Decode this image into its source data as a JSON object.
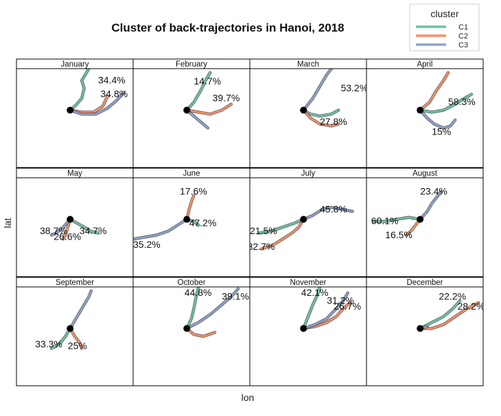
{
  "title": "Cluster of back-trajectories in Hanoi, 2018",
  "xlabel": "lon",
  "ylabel": "lat",
  "legend": {
    "title": "cluster",
    "items": [
      {
        "label": "C1",
        "color": "#66c2a5"
      },
      {
        "label": "C2",
        "color": "#fc8d62"
      },
      {
        "label": "C3",
        "color": "#8da0cb"
      }
    ]
  },
  "chart_data": {
    "type": "map-trajectory-facets",
    "panels": [
      {
        "month": "January",
        "clusters": [
          {
            "name": "C2",
            "pct_label": "34.8%"
          },
          {
            "name": "C3",
            "pct_label": "34.4%"
          },
          {
            "name": "C1",
            "pct_label": ""
          }
        ]
      },
      {
        "month": "February",
        "clusters": [
          {
            "name": "C1",
            "pct_label": "14.7%"
          },
          {
            "name": "C2",
            "pct_label": "39.7%"
          },
          {
            "name": "C3",
            "pct_label": ""
          }
        ]
      },
      {
        "month": "March",
        "clusters": [
          {
            "name": "C1",
            "pct_label": "27.8%"
          },
          {
            "name": "C3",
            "pct_label": "53.2%"
          },
          {
            "name": "C2",
            "pct_label": ""
          }
        ]
      },
      {
        "month": "April",
        "clusters": [
          {
            "name": "C1",
            "pct_label": "58.3%"
          },
          {
            "name": "C2",
            "pct_label": ""
          },
          {
            "name": "C3",
            "pct_label": "15%"
          }
        ]
      },
      {
        "month": "May",
        "clusters": [
          {
            "name": "C1",
            "pct_label": "34.7%"
          },
          {
            "name": "C2",
            "pct_label": "26.6%"
          },
          {
            "name": "C3",
            "pct_label": "38.7%"
          }
        ]
      },
      {
        "month": "June",
        "clusters": [
          {
            "name": "C1",
            "pct_label": "47.2%"
          },
          {
            "name": "C2",
            "pct_label": "17.6%"
          },
          {
            "name": "C3",
            "pct_label": "35.2%"
          }
        ]
      },
      {
        "month": "July",
        "clusters": [
          {
            "name": "C1",
            "pct_label": "21.5%"
          },
          {
            "name": "C2",
            "pct_label": "32.7%"
          },
          {
            "name": "C3",
            "pct_label": "45.8%"
          }
        ]
      },
      {
        "month": "August",
        "clusters": [
          {
            "name": "C1",
            "pct_label": "60.1%"
          },
          {
            "name": "C2",
            "pct_label": "16.5%"
          },
          {
            "name": "C3",
            "pct_label": "23.4%"
          }
        ]
      },
      {
        "month": "September",
        "clusters": [
          {
            "name": "C1",
            "pct_label": "33.3%"
          },
          {
            "name": "C2",
            "pct_label": "25%"
          },
          {
            "name": "C3",
            "pct_label": ""
          }
        ]
      },
      {
        "month": "October",
        "clusters": [
          {
            "name": "C1",
            "pct_label": "44.8%"
          },
          {
            "name": "C2",
            "pct_label": ""
          },
          {
            "name": "C3",
            "pct_label": "39.1%"
          }
        ]
      },
      {
        "month": "November",
        "clusters": [
          {
            "name": "C1",
            "pct_label": "42.1%"
          },
          {
            "name": "C2",
            "pct_label": "26.7%"
          },
          {
            "name": "C3",
            "pct_label": "31.2%"
          }
        ]
      },
      {
        "month": "December",
        "clusters": [
          {
            "name": "C1",
            "pct_label": "22.2%"
          },
          {
            "name": "C2",
            "pct_label": "28.2%"
          },
          {
            "name": "C3",
            "pct_label": ""
          }
        ]
      }
    ],
    "map_colors": {
      "china": "#fdc086",
      "vietnam": "#a6d39b",
      "neighbors": "#d6e8f4",
      "other": "#f4a6a6",
      "ocean": "#ffffff",
      "marker": "#000000"
    }
  }
}
